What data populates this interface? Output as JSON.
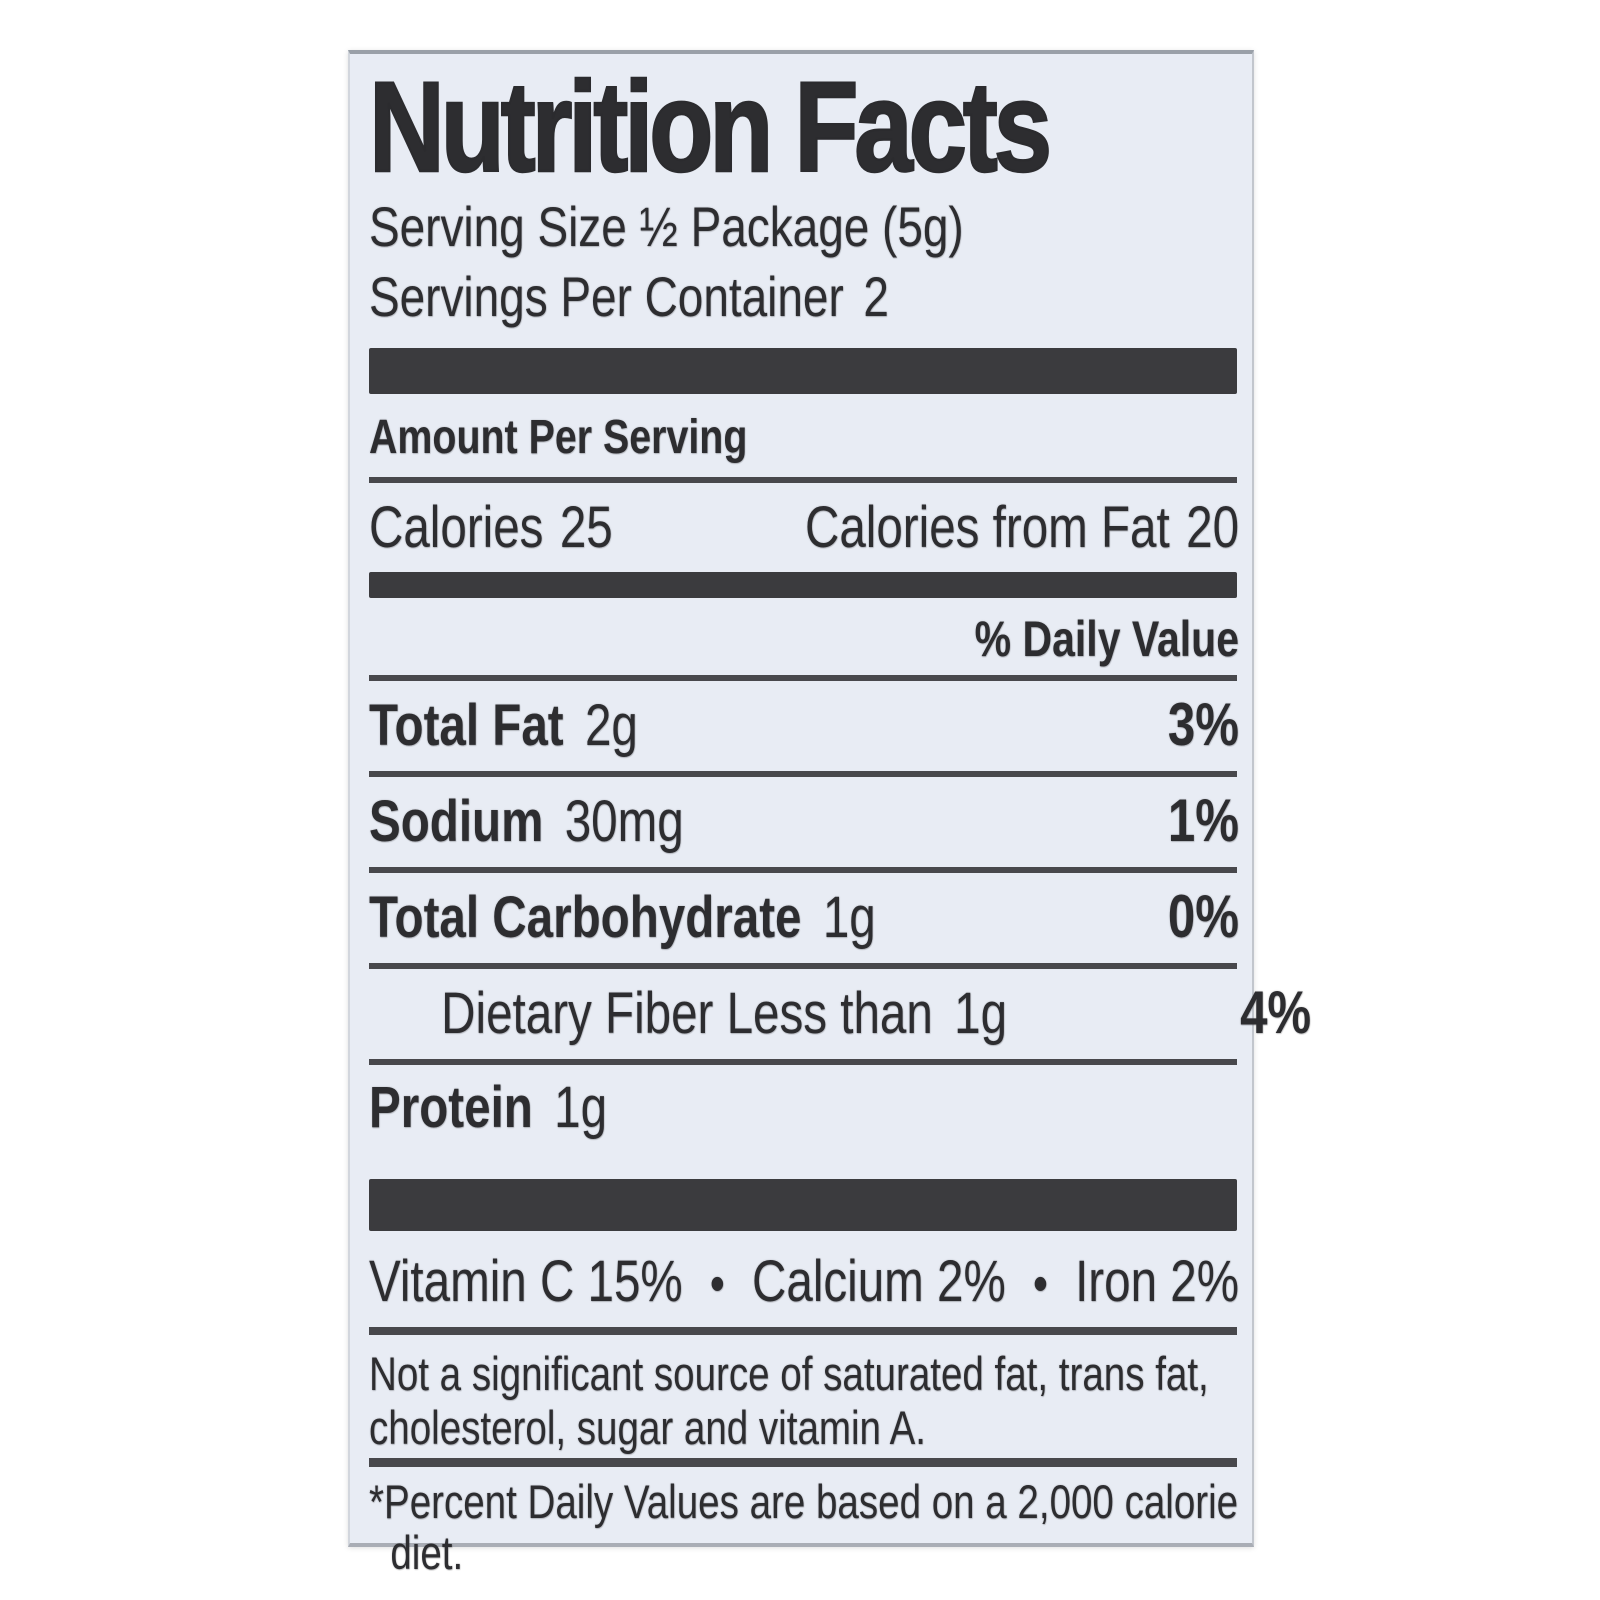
{
  "colors": {
    "label_background": "#e8ecf4",
    "ink": "#2d2d30",
    "section_bar": "#3b3b3e"
  },
  "label": {
    "title": "Nutrition Facts",
    "serving_size": "Serving Size ½ Package (5g)",
    "servings_per_container_label": "Servings Per Container",
    "servings_per_container_value": "2",
    "amount_per_serving": "Amount Per Serving",
    "calories": {
      "label": "Calories",
      "value": "25"
    },
    "calories_from_fat": {
      "label": "Calories from Fat",
      "value": "20"
    },
    "daily_value_header": "% Daily Value",
    "nutrients": [
      {
        "name": "Total Fat",
        "amount": "2g",
        "dv": "3%"
      },
      {
        "name": "Sodium",
        "amount": "30mg",
        "dv": "1%"
      },
      {
        "name": "Total Carbohydrate",
        "amount": "1g",
        "dv": "0%"
      },
      {
        "name": "Dietary Fiber Less than",
        "amount": "1g",
        "dv": "4%"
      },
      {
        "name": "Protein",
        "amount": "1g",
        "dv": ""
      }
    ],
    "vitamins": {
      "items": [
        "Vitamin C 15%",
        "Calcium 2%",
        "Iron 2%"
      ],
      "separator": "•"
    },
    "not_significant_note": "Not a significant source of saturated fat, trans fat, cholesterol, sugar and vitamin A.",
    "footnote": "*Percent Daily Values are based on a 2,000 calorie diet."
  }
}
